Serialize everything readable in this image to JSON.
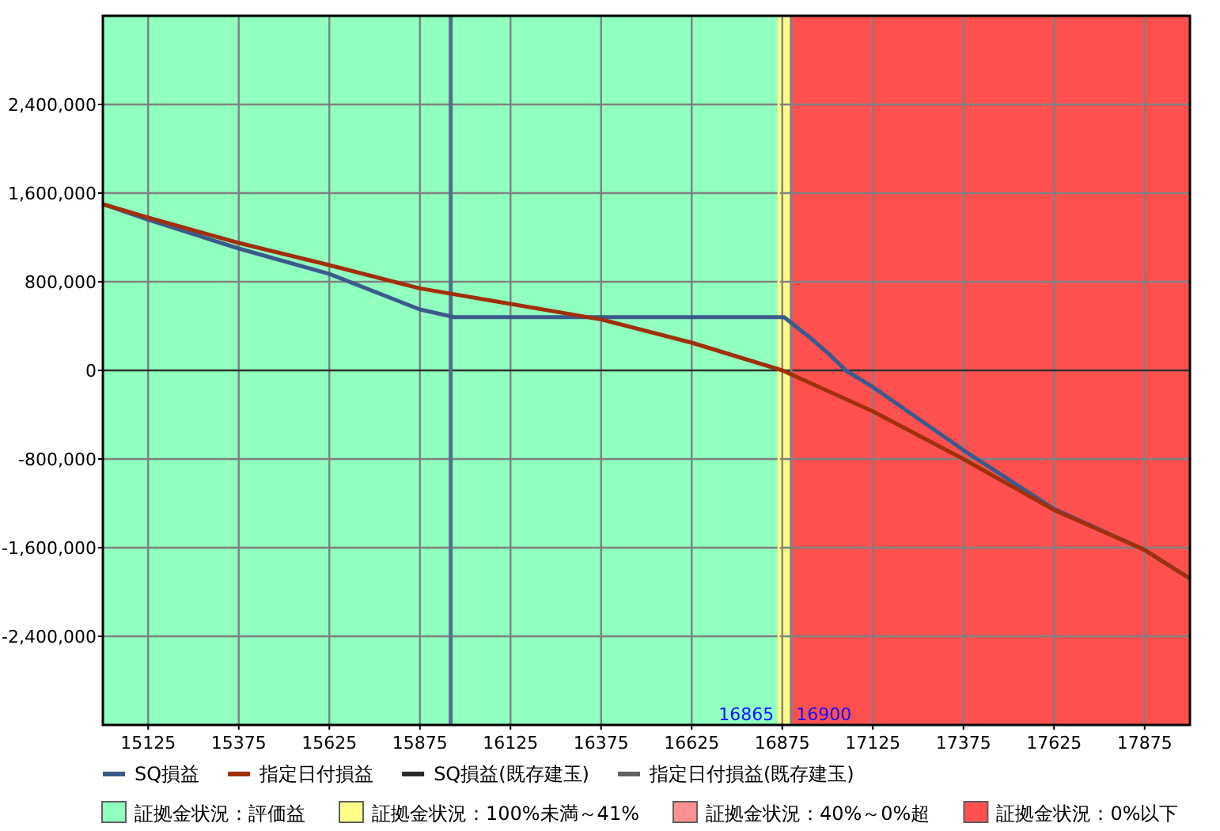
{
  "chart_data": {
    "type": "line",
    "xlim": [
      15000,
      18000
    ],
    "xticks": [
      15125,
      15375,
      15625,
      15875,
      16125,
      16375,
      16625,
      16875,
      17125,
      17375,
      17625,
      17875
    ],
    "ylim": [
      -3200000,
      3200000
    ],
    "yticks": [
      {
        "value": -2400000,
        "label": "-2,400,000"
      },
      {
        "value": -1600000,
        "label": "-1,600,000"
      },
      {
        "value": -800000,
        "label": "-800,000"
      },
      {
        "value": 0,
        "label": "0"
      },
      {
        "value": 800000,
        "label": "800,000"
      },
      {
        "value": 1600000,
        "label": "1,600,000"
      },
      {
        "value": 2400000,
        "label": "2,400,000"
      }
    ],
    "grid": true,
    "legend": "bottom",
    "line_style": "solid",
    "marker": "none",
    "series": [
      {
        "name": "SQ損益",
        "color": "#3a5a8c",
        "x": [
          15000,
          15125,
          15375,
          15625,
          15875,
          15970,
          16880,
          16950,
          17000,
          17050,
          17125,
          17375,
          17625,
          17875,
          18000
        ],
        "values": [
          1500000,
          1360000,
          1100000,
          870000,
          550000,
          480000,
          480000,
          300000,
          160000,
          0,
          -150000,
          -720000,
          -1250000,
          -1620000,
          -1880000
        ]
      },
      {
        "name": "指定日付損益",
        "color": "#a0300a",
        "x": [
          15000,
          15125,
          15375,
          15625,
          15875,
          16125,
          16375,
          16625,
          16875,
          17125,
          17375,
          17625,
          17875,
          18000
        ],
        "values": [
          1500000,
          1380000,
          1150000,
          950000,
          740000,
          600000,
          460000,
          250000,
          0,
          -370000,
          -800000,
          -1260000,
          -1620000,
          -1880000
        ]
      },
      {
        "name": "SQ損益(既存建玉)",
        "color": "#2a2a2a"
      },
      {
        "name": "指定日付損益(既存建玉)",
        "color": "#606060"
      }
    ],
    "bands": [
      {
        "axis": "x",
        "from": 15000,
        "to": 16865,
        "label": "証拠金状況：評価益",
        "color": "#90ffc0"
      },
      {
        "axis": "x",
        "from": 16865,
        "to": 16895,
        "label": "証拠金状況：100%未満～41%",
        "color": "#ffff88"
      },
      {
        "axis": "x",
        "from": 16895,
        "to": 16900,
        "label": "証拠金状況：40%～0%超",
        "color": "#ff9090"
      },
      {
        "axis": "x",
        "from": 16900,
        "to": 18000,
        "label": "証拠金状況：0%以下",
        "color": "#ff5050"
      }
    ],
    "ref_lines": [
      {
        "axis": "x",
        "value": 15960,
        "color": "#5a6a90"
      },
      {
        "axis": "x",
        "value": 16865,
        "label": "16865",
        "color": "#ffff88"
      },
      {
        "axis": "x",
        "value": 16900,
        "label": "16900",
        "color": "#808080"
      }
    ]
  }
}
